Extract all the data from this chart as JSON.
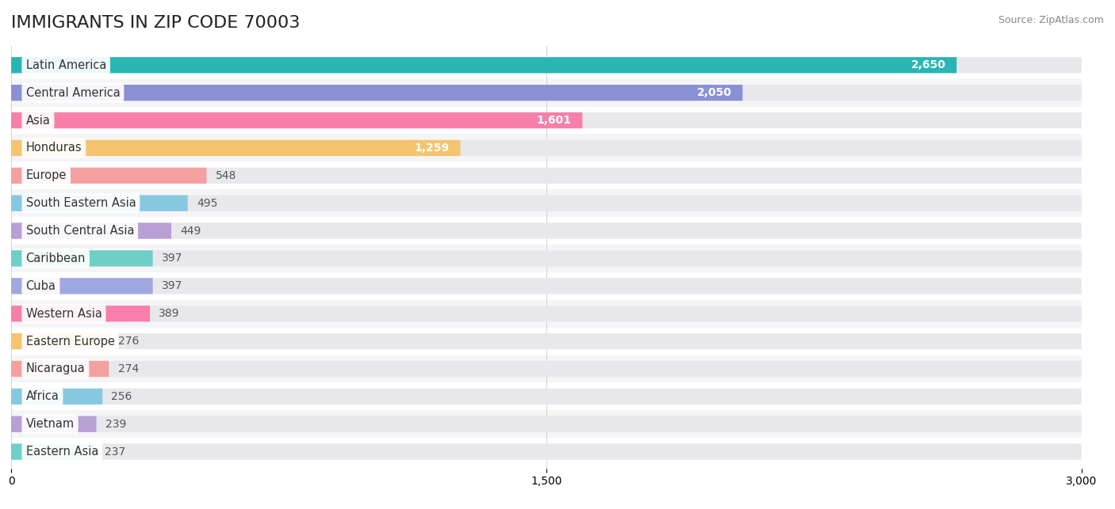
{
  "title": "IMMIGRANTS IN ZIP CODE 70003",
  "source": "Source: ZipAtlas.com",
  "categories": [
    "Latin America",
    "Central America",
    "Asia",
    "Honduras",
    "Europe",
    "South Eastern Asia",
    "South Central Asia",
    "Caribbean",
    "Cuba",
    "Western Asia",
    "Eastern Europe",
    "Nicaragua",
    "Africa",
    "Vietnam",
    "Eastern Asia"
  ],
  "values": [
    2650,
    2050,
    1601,
    1259,
    548,
    495,
    449,
    397,
    397,
    389,
    276,
    274,
    256,
    239,
    237
  ],
  "bar_colors": [
    "#2ab5b5",
    "#8b8fd4",
    "#f77faa",
    "#f5c46e",
    "#f5a0a0",
    "#85c8e0",
    "#b89fd4",
    "#6ecec8",
    "#a0a8e0",
    "#f77faa",
    "#f5c46e",
    "#f5a0a0",
    "#85c8e0",
    "#b89fd4",
    "#6ecec8"
  ],
  "xlim": [
    0,
    3000
  ],
  "xticks": [
    0,
    1500,
    3000
  ],
  "background_color": "#ffffff",
  "bar_bg_color": "#e8e8ec",
  "row_bg_even": "#ffffff",
  "row_bg_odd": "#f5f5f7",
  "title_fontsize": 16,
  "label_fontsize": 10.5,
  "value_fontsize": 10,
  "source_fontsize": 9,
  "inside_label_threshold": 600
}
